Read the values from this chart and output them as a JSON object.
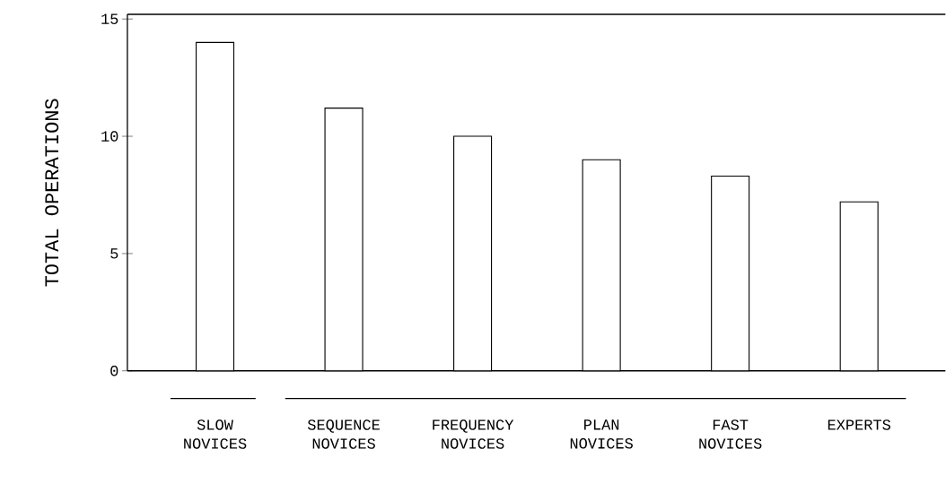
{
  "chart_data": {
    "type": "bar",
    "ylabel": "TOTAL OPERATIONS",
    "categories": [
      "SLOW NOVICES",
      "SEQUENCE NOVICES",
      "FREQUENCY NOVICES",
      "PLAN NOVICES",
      "FAST NOVICES",
      "EXPERTS"
    ],
    "values": [
      14,
      11.2,
      10,
      9.0,
      8.3,
      7.2
    ],
    "color": "#ffffff",
    "ylim": [
      0,
      15.2
    ],
    "yticks": [
      0,
      5,
      10,
      15
    ],
    "grid": false
  }
}
